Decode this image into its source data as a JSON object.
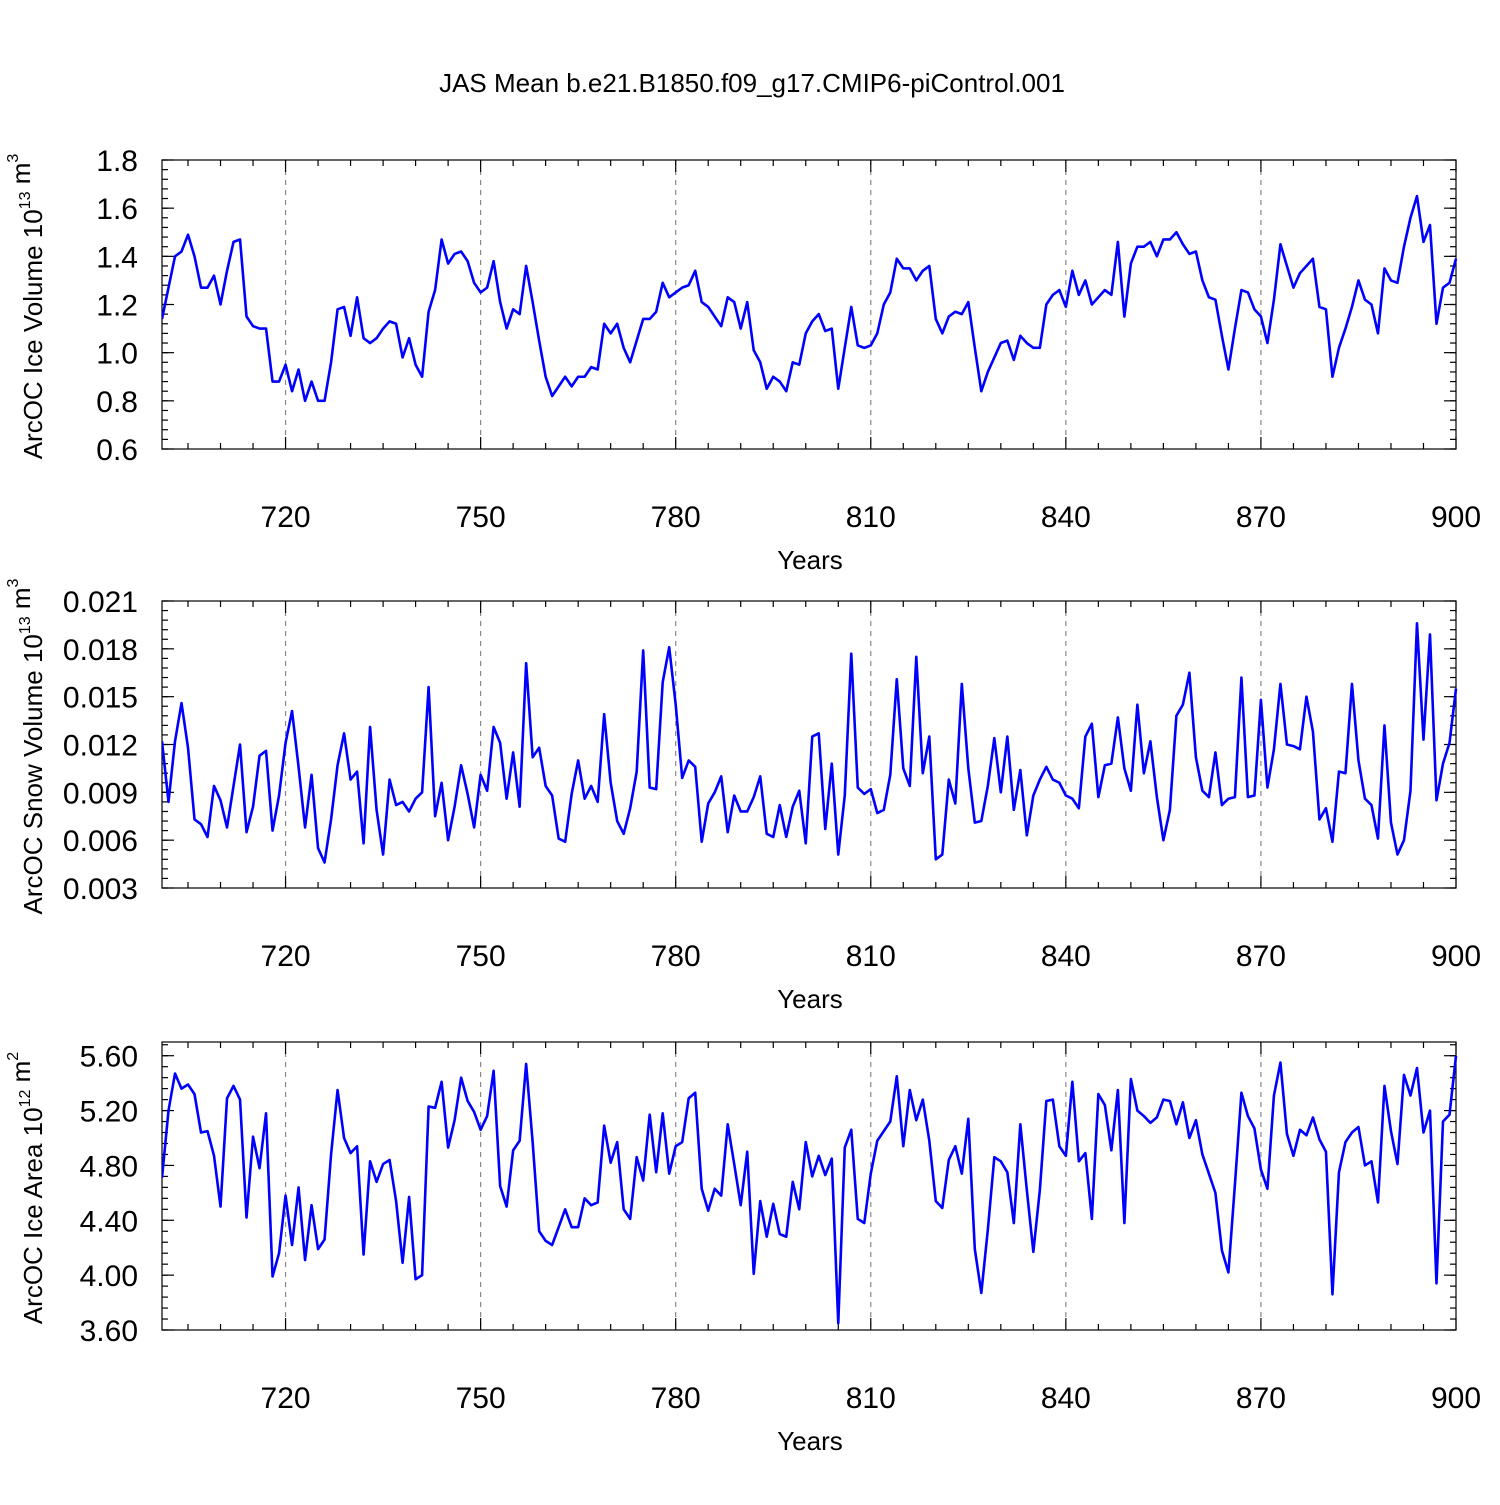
{
  "title": "JAS Mean b.e21.B1850.f09_g17.CMIP6-piControl.001",
  "chart_data": [
    {
      "type": "line",
      "panel": "top",
      "title": "",
      "xlabel": "Years",
      "ylabel_base": "ArcOC Ice Volume 10",
      "ylabel_exp": "13",
      "ylabel_unit": " m",
      "ylabel_unit_exp": "3",
      "xlim": [
        701,
        900
      ],
      "ylim": [
        0.6,
        1.8
      ],
      "xticks": [
        720,
        750,
        780,
        810,
        840,
        870,
        900
      ],
      "yticks": [
        0.6,
        0.8,
        1.0,
        1.2,
        1.4,
        1.6,
        1.8
      ],
      "ytick_labels": [
        "0.6",
        "0.8",
        "1.0",
        "1.2",
        "1.4",
        "1.6",
        "1.8"
      ],
      "grid": "dashed vertical at major x ticks",
      "legend": "none",
      "line_color": "#0000ff",
      "series": [
        {
          "name": "ArcOC Ice Volume",
          "x_start": 701,
          "x_step": 1,
          "values": [
            1.14,
            1.27,
            1.4,
            1.42,
            1.49,
            1.4,
            1.27,
            1.27,
            1.32,
            1.2,
            1.34,
            1.46,
            1.47,
            1.15,
            1.11,
            1.1,
            1.1,
            0.88,
            0.88,
            0.95,
            0.84,
            0.93,
            0.8,
            0.88,
            0.8,
            0.8,
            0.96,
            1.18,
            1.19,
            1.07,
            1.23,
            1.06,
            1.04,
            1.06,
            1.1,
            1.13,
            1.12,
            0.98,
            1.06,
            0.95,
            0.9,
            1.17,
            1.26,
            1.47,
            1.37,
            1.41,
            1.42,
            1.38,
            1.29,
            1.25,
            1.27,
            1.38,
            1.21,
            1.1,
            1.18,
            1.16,
            1.36,
            1.21,
            1.05,
            0.9,
            0.82,
            0.86,
            0.9,
            0.86,
            0.9,
            0.9,
            0.94,
            0.93,
            1.12,
            1.08,
            1.12,
            1.02,
            0.96,
            1.05,
            1.14,
            1.14,
            1.17,
            1.29,
            1.23,
            1.25,
            1.27,
            1.28,
            1.34,
            1.21,
            1.19,
            1.15,
            1.11,
            1.23,
            1.21,
            1.1,
            1.21,
            1.01,
            0.96,
            0.85,
            0.9,
            0.88,
            0.84,
            0.96,
            0.95,
            1.08,
            1.13,
            1.16,
            1.09,
            1.1,
            0.85,
            1.02,
            1.19,
            1.03,
            1.02,
            1.03,
            1.08,
            1.2,
            1.25,
            1.39,
            1.35,
            1.35,
            1.3,
            1.34,
            1.36,
            1.14,
            1.08,
            1.15,
            1.17,
            1.16,
            1.21,
            1.02,
            0.84,
            0.92,
            0.98,
            1.04,
            1.05,
            0.97,
            1.07,
            1.04,
            1.02,
            1.02,
            1.2,
            1.24,
            1.26,
            1.19,
            1.34,
            1.24,
            1.3,
            1.2,
            1.23,
            1.26,
            1.24,
            1.46,
            1.15,
            1.37,
            1.44,
            1.44,
            1.46,
            1.4,
            1.47,
            1.47,
            1.5,
            1.45,
            1.41,
            1.42,
            1.3,
            1.23,
            1.22,
            1.07,
            0.93,
            1.1,
            1.26,
            1.25,
            1.18,
            1.15,
            1.04,
            1.22,
            1.45,
            1.36,
            1.27,
            1.33,
            1.36,
            1.39,
            1.19,
            1.18,
            0.9,
            1.02,
            1.1,
            1.19,
            1.3,
            1.22,
            1.2,
            1.08,
            1.35,
            1.3,
            1.29,
            1.44,
            1.56,
            1.65,
            1.46,
            1.53,
            1.12,
            1.27,
            1.29,
            1.39
          ]
        }
      ]
    },
    {
      "type": "line",
      "panel": "middle",
      "title": "",
      "xlabel": "Years",
      "ylabel_base": "ArcOC Snow Volume 10",
      "ylabel_exp": "13",
      "ylabel_unit": " m",
      "ylabel_unit_exp": "3",
      "xlim": [
        701,
        900
      ],
      "ylim": [
        0.003,
        0.021
      ],
      "xticks": [
        720,
        750,
        780,
        810,
        840,
        870,
        900
      ],
      "yticks": [
        0.003,
        0.006,
        0.009,
        0.012,
        0.015,
        0.018,
        0.021
      ],
      "ytick_labels": [
        "0.003",
        "0.006",
        "0.009",
        "0.012",
        "0.015",
        "0.018",
        "0.021"
      ],
      "grid": "dashed vertical at major x ticks",
      "legend": "none",
      "line_color": "#0000ff",
      "series": [
        {
          "name": "ArcOC Snow Volume",
          "x_start": 701,
          "x_step": 1,
          "values": [
            0.0122,
            0.0084,
            0.0122,
            0.0146,
            0.0118,
            0.0073,
            0.007,
            0.0062,
            0.0094,
            0.0085,
            0.0068,
            0.0094,
            0.012,
            0.0065,
            0.0081,
            0.0113,
            0.0116,
            0.0066,
            0.0088,
            0.0121,
            0.0141,
            0.0106,
            0.0068,
            0.0101,
            0.0055,
            0.0046,
            0.0073,
            0.0107,
            0.0127,
            0.0098,
            0.0103,
            0.0058,
            0.0131,
            0.0079,
            0.0051,
            0.0098,
            0.0082,
            0.0084,
            0.0078,
            0.0086,
            0.009,
            0.0156,
            0.0075,
            0.0096,
            0.006,
            0.0081,
            0.0107,
            0.0089,
            0.0068,
            0.0101,
            0.0091,
            0.0131,
            0.0121,
            0.0086,
            0.0115,
            0.0081,
            0.0171,
            0.0112,
            0.0118,
            0.0094,
            0.0088,
            0.0061,
            0.0059,
            0.0089,
            0.011,
            0.0086,
            0.0094,
            0.0084,
            0.0139,
            0.0096,
            0.0072,
            0.0064,
            0.008,
            0.0103,
            0.0179,
            0.0093,
            0.0092,
            0.0159,
            0.0181,
            0.0145,
            0.0099,
            0.011,
            0.0106,
            0.0059,
            0.0083,
            0.009,
            0.01,
            0.0065,
            0.0088,
            0.0078,
            0.0078,
            0.0087,
            0.01,
            0.0064,
            0.0062,
            0.0082,
            0.0062,
            0.0081,
            0.0091,
            0.0058,
            0.0125,
            0.0127,
            0.0067,
            0.0108,
            0.0051,
            0.0088,
            0.0177,
            0.0093,
            0.0089,
            0.0092,
            0.0077,
            0.0079,
            0.0101,
            0.0161,
            0.0105,
            0.0094,
            0.0175,
            0.0102,
            0.0125,
            0.0048,
            0.0051,
            0.0098,
            0.0083,
            0.0158,
            0.0105,
            0.0071,
            0.0072,
            0.0094,
            0.0124,
            0.009,
            0.0125,
            0.0079,
            0.0104,
            0.0063,
            0.0088,
            0.0098,
            0.0106,
            0.0098,
            0.0096,
            0.0088,
            0.0086,
            0.008,
            0.0125,
            0.0133,
            0.0087,
            0.0107,
            0.0108,
            0.0137,
            0.0105,
            0.0091,
            0.0145,
            0.0102,
            0.0122,
            0.0087,
            0.006,
            0.0079,
            0.0138,
            0.0145,
            0.0165,
            0.0112,
            0.0091,
            0.0087,
            0.0115,
            0.0082,
            0.0086,
            0.0087,
            0.0162,
            0.0087,
            0.0088,
            0.0148,
            0.0093,
            0.0117,
            0.0158,
            0.012,
            0.0119,
            0.0117,
            0.015,
            0.0128,
            0.0073,
            0.008,
            0.0059,
            0.0103,
            0.0102,
            0.0158,
            0.011,
            0.0086,
            0.0082,
            0.0061,
            0.0132,
            0.0071,
            0.0051,
            0.006,
            0.0091,
            0.0196,
            0.0123,
            0.0189,
            0.0085,
            0.0108,
            0.0121,
            0.0155
          ]
        }
      ]
    },
    {
      "type": "line",
      "panel": "bottom",
      "title": "",
      "xlabel": "Years",
      "ylabel_base": "ArcOC Ice Area 10",
      "ylabel_exp": "12",
      "ylabel_unit": " m",
      "ylabel_unit_exp": "2",
      "xlim": [
        701,
        900
      ],
      "ylim": [
        3.6,
        5.7
      ],
      "xticks": [
        720,
        750,
        780,
        810,
        840,
        870,
        900
      ],
      "yticks": [
        3.6,
        4.0,
        4.4,
        4.8,
        5.2,
        5.6
      ],
      "ytick_labels": [
        "3.60",
        "4.00",
        "4.40",
        "4.80",
        "5.20",
        "5.60"
      ],
      "grid": "dashed vertical at major x ticks",
      "legend": "none",
      "line_color": "#0000ff",
      "series": [
        {
          "name": "ArcOC Ice Area",
          "x_start": 701,
          "x_step": 1,
          "values": [
            4.71,
            5.2,
            5.47,
            5.36,
            5.39,
            5.32,
            5.04,
            5.05,
            4.87,
            4.5,
            5.29,
            5.38,
            5.28,
            4.42,
            5.01,
            4.78,
            5.18,
            3.99,
            4.16,
            4.58,
            4.22,
            4.64,
            4.11,
            4.51,
            4.19,
            4.26,
            4.88,
            5.35,
            5.0,
            4.89,
            4.94,
            4.15,
            4.83,
            4.68,
            4.81,
            4.84,
            4.54,
            4.09,
            4.57,
            3.97,
            4.0,
            5.23,
            5.22,
            5.41,
            4.93,
            5.13,
            5.44,
            5.27,
            5.19,
            5.06,
            5.16,
            5.49,
            4.65,
            4.5,
            4.91,
            4.98,
            5.54,
            4.97,
            4.32,
            4.25,
            4.22,
            4.35,
            4.48,
            4.35,
            4.35,
            4.56,
            4.51,
            4.53,
            5.09,
            4.82,
            4.97,
            4.48,
            4.41,
            4.86,
            4.69,
            5.17,
            4.75,
            5.18,
            4.74,
            4.94,
            4.97,
            5.29,
            5.33,
            4.63,
            4.47,
            4.63,
            4.58,
            5.1,
            4.81,
            4.51,
            4.9,
            4.01,
            4.54,
            4.28,
            4.52,
            4.3,
            4.28,
            4.68,
            4.48,
            4.97,
            4.72,
            4.87,
            4.73,
            4.85,
            3.65,
            4.93,
            5.06,
            4.41,
            4.38,
            4.74,
            4.98,
            5.05,
            5.12,
            5.45,
            4.94,
            5.35,
            5.13,
            5.28,
            4.98,
            4.54,
            4.49,
            4.84,
            4.94,
            4.74,
            5.14,
            4.19,
            3.87,
            4.33,
            4.86,
            4.83,
            4.75,
            4.38,
            5.1,
            4.62,
            4.17,
            4.62,
            5.27,
            5.28,
            4.94,
            4.87,
            5.41,
            4.83,
            4.89,
            4.41,
            5.32,
            5.24,
            4.91,
            5.35,
            4.38,
            5.43,
            5.2,
            5.16,
            5.11,
            5.15,
            5.28,
            5.27,
            5.1,
            5.26,
            5.0,
            5.13,
            4.88,
            4.74,
            4.6,
            4.18,
            4.02,
            4.66,
            5.33,
            5.16,
            5.07,
            4.77,
            4.63,
            5.31,
            5.55,
            5.03,
            4.87,
            5.06,
            5.02,
            5.15,
            4.99,
            4.9,
            3.86,
            4.75,
            4.97,
            5.04,
            5.08,
            4.8,
            4.83,
            4.53,
            5.38,
            5.05,
            4.81,
            5.46,
            5.31,
            5.51,
            5.04,
            5.2,
            3.94,
            5.12,
            5.17,
            5.6
          ]
        }
      ]
    }
  ]
}
